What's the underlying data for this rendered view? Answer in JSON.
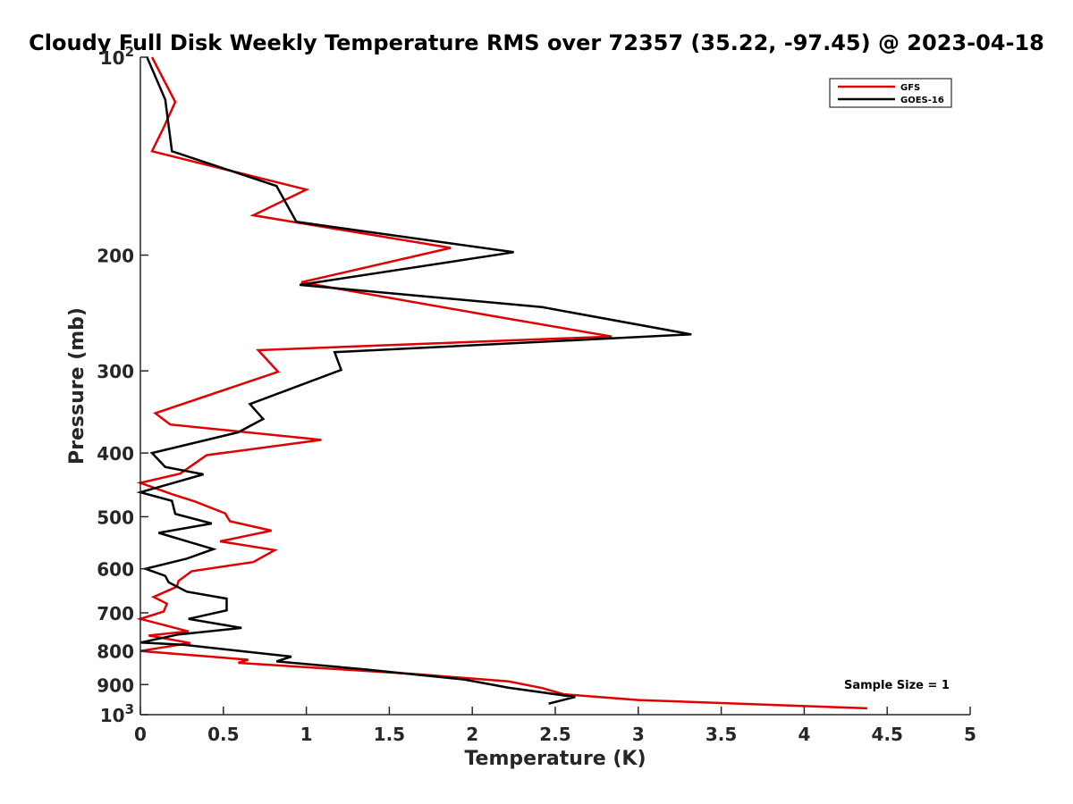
{
  "chart_data": {
    "type": "line",
    "title": "Cloudy Full Disk Weekly Temperature RMS over 72357 (35.22, -97.45) @ 2023-04-18",
    "xlabel": "Temperature (K)",
    "ylabel": "Pressure (mb)",
    "xlim": [
      0,
      5
    ],
    "ylim": [
      100,
      1000
    ],
    "y_scale": "log",
    "y_reversed": true,
    "xticks": [
      0,
      0.5,
      1,
      1.5,
      2,
      2.5,
      3,
      3.5,
      4,
      4.5,
      5
    ],
    "xtick_labels": [
      "0",
      "0.5",
      "1",
      "1.5",
      "2",
      "2.5",
      "3",
      "3.5",
      "4",
      "4.5",
      "5"
    ],
    "yticks": [
      {
        "value": 100,
        "base": "10",
        "exp": "2"
      },
      {
        "value": 200,
        "base": "200",
        "exp": ""
      },
      {
        "value": 300,
        "base": "300",
        "exp": ""
      },
      {
        "value": 400,
        "base": "400",
        "exp": ""
      },
      {
        "value": 500,
        "base": "500",
        "exp": ""
      },
      {
        "value": 600,
        "base": "600",
        "exp": ""
      },
      {
        "value": 700,
        "base": "700",
        "exp": ""
      },
      {
        "value": 800,
        "base": "800",
        "exp": ""
      },
      {
        "value": 900,
        "base": "900",
        "exp": ""
      },
      {
        "value": 1000,
        "base": "10",
        "exp": "3"
      }
    ],
    "grid": false,
    "legend_position": "top-right",
    "annotation": "Sample Size = 1",
    "series": [
      {
        "name": "GFS",
        "color": "#e00000",
        "points": [
          [
            0.07,
            100
          ],
          [
            0.21,
            117
          ],
          [
            0.14,
            128
          ],
          [
            0.07,
            139
          ],
          [
            1.0,
            159
          ],
          [
            0.68,
            174
          ],
          [
            1.87,
            195
          ],
          [
            0.97,
            220
          ],
          [
            2.1,
            247
          ],
          [
            2.84,
            266
          ],
          [
            0.71,
            279
          ],
          [
            0.83,
            301
          ],
          [
            0.09,
            348
          ],
          [
            0.18,
            362
          ],
          [
            1.09,
            382
          ],
          [
            0.4,
            403
          ],
          [
            0.24,
            430
          ],
          [
            0.0,
            444
          ],
          [
            0.19,
            462
          ],
          [
            0.33,
            474
          ],
          [
            0.51,
            494
          ],
          [
            0.54,
            508
          ],
          [
            0.79,
            525
          ],
          [
            0.48,
            545
          ],
          [
            0.81,
            562
          ],
          [
            0.68,
            586
          ],
          [
            0.31,
            605
          ],
          [
            0.23,
            626
          ],
          [
            0.22,
            639
          ],
          [
            0.08,
            662
          ],
          [
            0.16,
            678
          ],
          [
            0.14,
            697
          ],
          [
            0.0,
            715
          ],
          [
            0.29,
            747
          ],
          [
            0.05,
            758
          ],
          [
            0.3,
            778
          ],
          [
            0.0,
            800
          ],
          [
            0.65,
            825
          ],
          [
            0.59,
            834
          ],
          [
            1.67,
            868
          ],
          [
            2.22,
            890
          ],
          [
            2.42,
            911
          ],
          [
            2.55,
            931
          ],
          [
            3.0,
            950
          ],
          [
            4.38,
            978
          ]
        ]
      },
      {
        "name": "GOES-16",
        "color": "#000000",
        "points": [
          [
            0.04,
            100
          ],
          [
            0.15,
            116
          ],
          [
            0.19,
            139
          ],
          [
            0.82,
            157
          ],
          [
            0.94,
            178
          ],
          [
            2.25,
            198
          ],
          [
            0.96,
            222
          ],
          [
            2.42,
            240
          ],
          [
            3.32,
            264
          ],
          [
            1.17,
            281
          ],
          [
            1.21,
            299
          ],
          [
            0.66,
            337
          ],
          [
            0.74,
            355
          ],
          [
            0.59,
            372
          ],
          [
            0.07,
            400
          ],
          [
            0.15,
            420
          ],
          [
            0.38,
            431
          ],
          [
            0.0,
            459
          ],
          [
            0.19,
            473
          ],
          [
            0.21,
            495
          ],
          [
            0.43,
            512
          ],
          [
            0.11,
            529
          ],
          [
            0.44,
            560
          ],
          [
            0.28,
            579
          ],
          [
            0.03,
            600
          ],
          [
            0.15,
            615
          ],
          [
            0.17,
            629
          ],
          [
            0.28,
            650
          ],
          [
            0.52,
            666
          ],
          [
            0.52,
            694
          ],
          [
            0.29,
            715
          ],
          [
            0.61,
            738
          ],
          [
            0.23,
            755
          ],
          [
            0.0,
            777
          ],
          [
            0.26,
            783
          ],
          [
            0.91,
            816
          ],
          [
            0.82,
            830
          ],
          [
            1.35,
            853
          ],
          [
            1.95,
            884
          ],
          [
            2.22,
            910
          ],
          [
            2.62,
            940
          ],
          [
            2.46,
            962
          ]
        ]
      }
    ]
  }
}
